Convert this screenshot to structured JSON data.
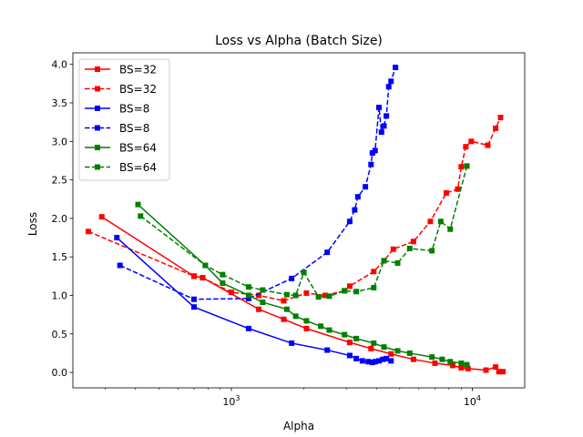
{
  "chart_data": {
    "type": "line",
    "title": "Loss vs Alpha (Batch Size)",
    "xlabel": "Alpha",
    "ylabel": "Loss",
    "xscale": "log",
    "xlim": [
      220,
      16500
    ],
    "ylim": [
      -0.2,
      4.15
    ],
    "x_ticks": [
      {
        "value": 1000,
        "base": "10",
        "exp": "3"
      },
      {
        "value": 10000,
        "base": "10",
        "exp": "4"
      }
    ],
    "y_ticks": [
      "0.0",
      "0.5",
      "1.0",
      "1.5",
      "2.0",
      "2.5",
      "3.0",
      "3.5",
      "4.0"
    ],
    "grid": false,
    "legend_position": "top-left",
    "series": [
      {
        "name": "BS=32",
        "color": "#ff0000",
        "linestyle": "solid",
        "points": [
          [
            290,
            2.02
          ],
          [
            700,
            1.25
          ],
          [
            760,
            1.23
          ],
          [
            1300,
            0.82
          ],
          [
            1650,
            0.69
          ],
          [
            2050,
            0.57
          ],
          [
            3100,
            0.39
          ],
          [
            3800,
            0.31
          ],
          [
            4600,
            0.24
          ],
          [
            5700,
            0.17
          ],
          [
            7000,
            0.12
          ],
          [
            8300,
            0.09
          ],
          [
            9000,
            0.06
          ],
          [
            9600,
            0.05
          ],
          [
            11400,
            0.03
          ],
          [
            12500,
            0.07
          ],
          [
            12900,
            0.01
          ],
          [
            13400,
            0.01
          ]
        ]
      },
      {
        "name": "BS=32",
        "color": "#ff0000",
        "linestyle": "dashed",
        "points": [
          [
            255,
            1.83
          ],
          [
            700,
            1.25
          ],
          [
            760,
            1.23
          ],
          [
            1000,
            1.04
          ],
          [
            1300,
            1.0
          ],
          [
            1650,
            0.93
          ],
          [
            2050,
            1.03
          ],
          [
            2450,
            1.0
          ],
          [
            2950,
            1.06
          ],
          [
            3100,
            1.12
          ],
          [
            3900,
            1.31
          ],
          [
            4300,
            1.45
          ],
          [
            4700,
            1.6
          ],
          [
            5700,
            1.7
          ],
          [
            6700,
            1.96
          ],
          [
            7800,
            2.33
          ],
          [
            8700,
            2.38
          ],
          [
            9000,
            2.67
          ],
          [
            9400,
            2.93
          ],
          [
            9900,
            3.0
          ],
          [
            11600,
            2.95
          ],
          [
            12500,
            3.17
          ],
          [
            13100,
            3.31
          ]
        ]
      },
      {
        "name": "BS=8",
        "color": "#0000ff",
        "linestyle": "solid",
        "points": [
          [
            335,
            1.75
          ],
          [
            700,
            0.85
          ],
          [
            1180,
            0.57
          ],
          [
            1780,
            0.38
          ],
          [
            2500,
            0.29
          ],
          [
            3100,
            0.22
          ],
          [
            3300,
            0.18
          ],
          [
            3500,
            0.15
          ],
          [
            3700,
            0.14
          ],
          [
            3850,
            0.13
          ],
          [
            3950,
            0.14
          ],
          [
            4100,
            0.15
          ],
          [
            4250,
            0.17
          ],
          [
            4400,
            0.18
          ],
          [
            4600,
            0.15
          ]
        ]
      },
      {
        "name": "BS=8",
        "color": "#0000ff",
        "linestyle": "dashed",
        "points": [
          [
            345,
            1.39
          ],
          [
            700,
            0.95
          ],
          [
            1180,
            0.96
          ],
          [
            1780,
            1.22
          ],
          [
            2500,
            1.56
          ],
          [
            3100,
            1.96
          ],
          [
            3250,
            2.11
          ],
          [
            3350,
            2.28
          ],
          [
            3600,
            2.41
          ],
          [
            3800,
            2.7
          ],
          [
            3850,
            2.85
          ],
          [
            3950,
            2.88
          ],
          [
            4100,
            3.44
          ],
          [
            4200,
            3.12
          ],
          [
            4300,
            3.2
          ],
          [
            4400,
            3.33
          ],
          [
            4500,
            3.71
          ],
          [
            4600,
            3.78
          ],
          [
            4800,
            3.96
          ]
        ]
      },
      {
        "name": "BS=64",
        "color": "#008000",
        "linestyle": "solid",
        "points": [
          [
            410,
            2.18
          ],
          [
            780,
            1.39
          ],
          [
            920,
            1.16
          ],
          [
            1180,
            1.0
          ],
          [
            1350,
            0.91
          ],
          [
            1700,
            0.82
          ],
          [
            1850,
            0.73
          ],
          [
            2050,
            0.67
          ],
          [
            2350,
            0.6
          ],
          [
            2550,
            0.55
          ],
          [
            2950,
            0.49
          ],
          [
            3300,
            0.44
          ],
          [
            3900,
            0.38
          ],
          [
            4300,
            0.33
          ],
          [
            4900,
            0.28
          ],
          [
            5500,
            0.25
          ],
          [
            6800,
            0.2
          ],
          [
            7500,
            0.17
          ],
          [
            8100,
            0.14
          ],
          [
            9000,
            0.12
          ],
          [
            9500,
            0.1
          ]
        ]
      },
      {
        "name": "BS=64",
        "color": "#008000",
        "linestyle": "dashed",
        "points": [
          [
            420,
            2.03
          ],
          [
            780,
            1.39
          ],
          [
            920,
            1.27
          ],
          [
            1180,
            1.11
          ],
          [
            1350,
            1.07
          ],
          [
            1700,
            1.01
          ],
          [
            1850,
            1.0
          ],
          [
            2000,
            1.3
          ],
          [
            2300,
            0.98
          ],
          [
            2550,
            0.99
          ],
          [
            2950,
            1.06
          ],
          [
            3300,
            1.05
          ],
          [
            3900,
            1.1
          ],
          [
            4300,
            1.45
          ],
          [
            4900,
            1.42
          ],
          [
            5500,
            1.61
          ],
          [
            6800,
            1.58
          ],
          [
            7400,
            1.96
          ],
          [
            8100,
            1.86
          ],
          [
            9500,
            2.68
          ]
        ]
      }
    ]
  }
}
